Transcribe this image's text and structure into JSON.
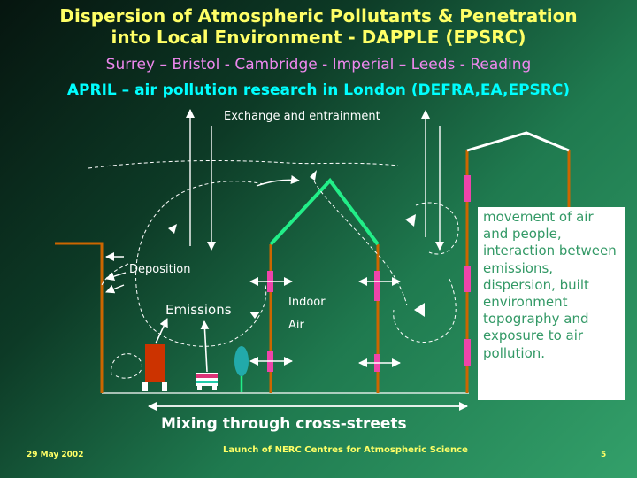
{
  "title": {
    "line1": "Dispersion of Atmospheric Pollutants & Penetration",
    "line2": "into Local Environment - DAPPLE (EPSRC)"
  },
  "subtitle": "Surrey – Bristol - Cambridge - Imperial – Leeds - Reading",
  "project_line": "APRIL – air pollution research in London (DEFRA,EA,EPSRC)",
  "diagram": {
    "exchange_label": "Exchange and entrainment",
    "deposition_label": "Deposition",
    "emissions_label": "Emissions",
    "indoor_label_line1": "Indoor",
    "indoor_label_line2": "Air",
    "mixing_label": "Mixing through cross-streets",
    "info_text": "movement of air and people, interaction between emissions, dispersion, built environment topography and exposure to air pollution."
  },
  "colors": {
    "title": "#ffff66",
    "subtitle": "#ee88ee",
    "project": "#00ffff",
    "building_wall": "#cc6600",
    "roof_green": "#22ee88",
    "window_magenta": "#ee44aa",
    "info_text": "#339966"
  },
  "footer": {
    "date": "29 May 2002",
    "event": "Launch of NERC Centres for Atmospheric Science",
    "page": "5"
  }
}
